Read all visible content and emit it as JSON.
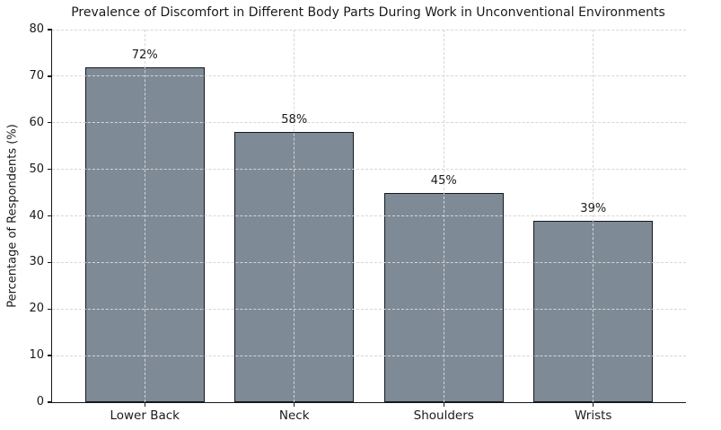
{
  "chart_data": {
    "type": "bar",
    "title": "Prevalence of Discomfort in Different Body Parts During Work in Unconventional Environments",
    "xlabel": "",
    "ylabel": "Percentage of Respondents (%)",
    "categories": [
      "Lower Back",
      "Neck",
      "Shoulders",
      "Wrists"
    ],
    "values": [
      72,
      58,
      45,
      39
    ],
    "value_labels": [
      "72%",
      "58%",
      "45%",
      "39%"
    ],
    "ylim": [
      0,
      80
    ],
    "yticks": [
      0,
      10,
      20,
      30,
      40,
      50,
      60,
      70,
      80
    ],
    "grid": true,
    "grid_style": "dashed",
    "legend": "none",
    "colors": {
      "bar_fill": "#7e8a96",
      "bar_edge": "#14181d",
      "grid": "#d6d6d6",
      "spine": "#15181e",
      "text": "#1a1a1a",
      "background": "#ffffff"
    }
  }
}
